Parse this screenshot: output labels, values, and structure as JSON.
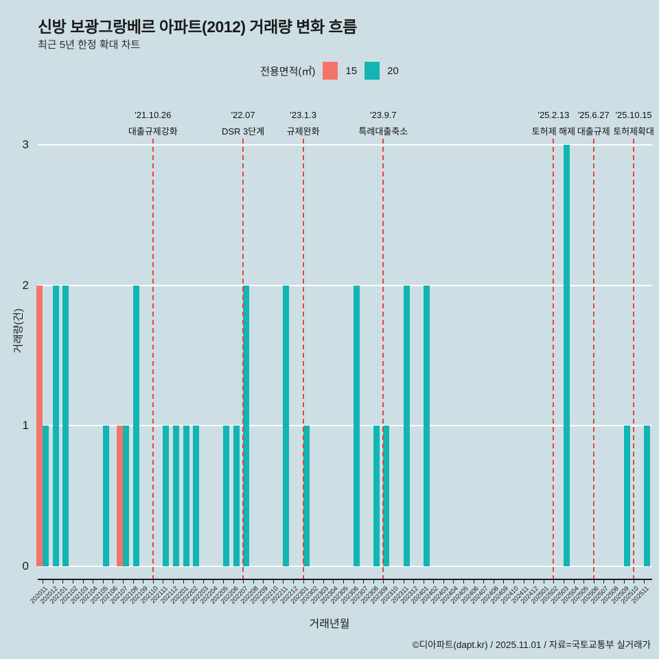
{
  "header": {
    "title": "신방 보광그랑베르 아파트(2012) 거래량 변화 흐름",
    "subtitle": "최근 5년 한정 확대 차트"
  },
  "legend": {
    "title": "전용면적(㎡)",
    "items": [
      {
        "label": "15",
        "color": "#f4746c"
      },
      {
        "label": "20",
        "color": "#12b5b3"
      }
    ]
  },
  "axes": {
    "y_title": "거래량(건)",
    "x_title": "거래년월",
    "y_ticks": [
      "0",
      "1",
      "2",
      "3"
    ]
  },
  "footer": {
    "credit": "©디아파트(dapt.kr) / 2025.11.01 / 자료=국토교통부 실거래가"
  },
  "colors": {
    "background": "#cddfe4",
    "event_line": "#e8433a",
    "gridline": "#ffffff",
    "text": "#1a1a1a"
  },
  "chart_data": {
    "type": "bar",
    "title": "신방 보광그랑베르 아파트(2012) 거래량 변화 흐름",
    "subtitle": "최근 5년 한정 확대 차트",
    "xlabel": "거래년월",
    "ylabel": "거래량(건)",
    "ylim": [
      0,
      3
    ],
    "grid": "horizontal-white",
    "legend_position": "top-center",
    "categories": [
      "202011",
      "202012",
      "202101",
      "202102",
      "202103",
      "202104",
      "202105",
      "202106",
      "202107",
      "202108",
      "202109",
      "202110",
      "202111",
      "202112",
      "202201",
      "202202",
      "202203",
      "202204",
      "202205",
      "202206",
      "202207",
      "202208",
      "202209",
      "202210",
      "202211",
      "202212",
      "202301",
      "202302",
      "202303",
      "202304",
      "202305",
      "202306",
      "202307",
      "202308",
      "202309",
      "202310",
      "202311",
      "202312",
      "202401",
      "202402",
      "202403",
      "202404",
      "202405",
      "202406",
      "202407",
      "202408",
      "202409",
      "202410",
      "202411",
      "202412",
      "202501",
      "202502",
      "202503",
      "202504",
      "202505",
      "202506",
      "202507",
      "202508",
      "202509",
      "202510",
      "202511"
    ],
    "series": [
      {
        "name": "15",
        "color": "#f4746c",
        "values": [
          2,
          0,
          0,
          0,
          0,
          0,
          0,
          0,
          1,
          0,
          0,
          0,
          0,
          0,
          0,
          0,
          0,
          0,
          0,
          0,
          0,
          0,
          0,
          0,
          0,
          0,
          0,
          0,
          0,
          0,
          0,
          0,
          0,
          0,
          0,
          0,
          0,
          0,
          0,
          0,
          0,
          0,
          0,
          0,
          0,
          0,
          0,
          0,
          0,
          0,
          0,
          0,
          0,
          0,
          0,
          0,
          0,
          0,
          0,
          0,
          0
        ]
      },
      {
        "name": "20",
        "color": "#12b5b3",
        "values": [
          1,
          2,
          2,
          0,
          0,
          0,
          1,
          0,
          1,
          2,
          0,
          0,
          1,
          1,
          1,
          1,
          0,
          0,
          1,
          1,
          2,
          0,
          0,
          0,
          2,
          0,
          1,
          0,
          0,
          0,
          0,
          2,
          0,
          1,
          1,
          0,
          2,
          0,
          2,
          0,
          0,
          0,
          0,
          0,
          0,
          0,
          0,
          0,
          0,
          0,
          0,
          0,
          3,
          0,
          0,
          0,
          0,
          0,
          1,
          0,
          1
        ]
      }
    ],
    "event_lines": [
      {
        "category": "202110",
        "date": "'21.10.26",
        "label": "대출규제강화"
      },
      {
        "category": "202207",
        "date": "'22.07",
        "label": "DSR 3단계"
      },
      {
        "category": "202301",
        "date": "'23.1.3",
        "label": "규제완화"
      },
      {
        "category": "202309",
        "date": "'23.9.7",
        "label": "특례대출축소"
      },
      {
        "category": "202502",
        "date": "'25.2.13",
        "label": "토허제 해제"
      },
      {
        "category": "202506",
        "date": "'25.6.27",
        "label": "대출규제"
      },
      {
        "category": "202510",
        "date": "'25.10.15",
        "label": "토허제확대"
      }
    ]
  }
}
